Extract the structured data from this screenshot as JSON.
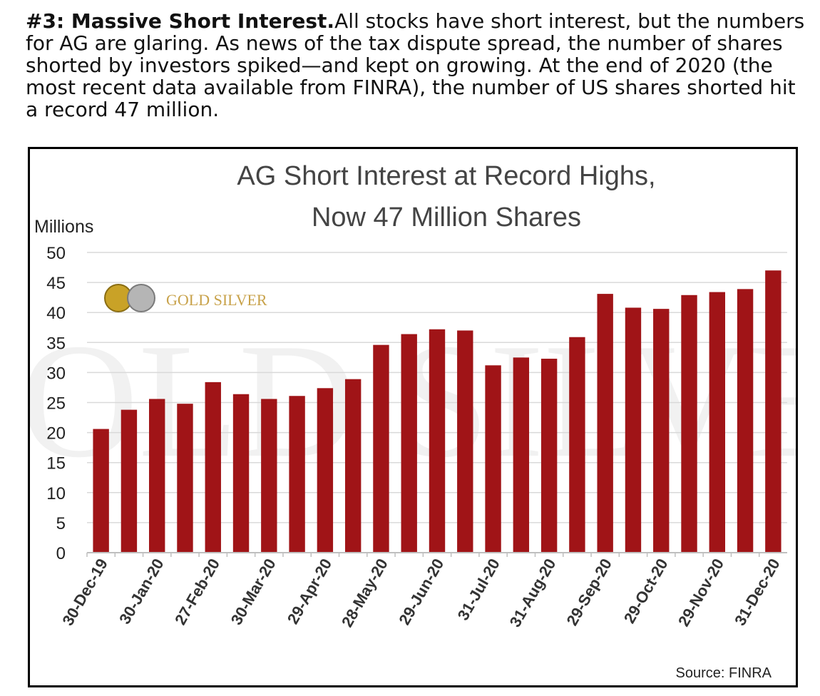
{
  "intro": {
    "lead": "#3: Massive Short Interest.",
    "body": "All stocks have short interest, but the numbers for AG are glaring. As news of the tax dispute spread, the number of shares shorted by investors spiked—and kept on growing. At the end of 2020 (the most recent data available from FINRA), the number of US shares shorted hit a record 47 million."
  },
  "logo": {
    "text": "GOLD SILVER",
    "gold_color": "#c9a227",
    "silver_color": "#a8a8a8"
  },
  "chart_data": {
    "type": "bar",
    "title": [
      "AG Short Interest at Record Highs,",
      "Now 47 Million Shares"
    ],
    "ylabel": "Millions",
    "xlabel": "",
    "ylim": [
      0,
      50
    ],
    "yticks": [
      0,
      5,
      10,
      15,
      20,
      25,
      30,
      35,
      40,
      45,
      50
    ],
    "grid": true,
    "bar_color": "#a01417",
    "source": "Source: FINRA",
    "x_tick_labels": [
      "30-Dec-19",
      "30-Jan-20",
      "27-Feb-20",
      "30-Mar-20",
      "29-Apr-20",
      "28-May-20",
      "29-Jun-20",
      "31-Jul-20",
      "31-Aug-20",
      "29-Sep-20",
      "29-Oct-20",
      "29-Nov-20",
      "31-Dec-20"
    ],
    "values": [
      20.6,
      23.8,
      25.6,
      24.8,
      28.4,
      26.4,
      25.6,
      26.1,
      27.4,
      28.9,
      34.6,
      36.4,
      37.2,
      37.0,
      31.2,
      32.5,
      32.3,
      35.9,
      43.1,
      40.8,
      40.6,
      42.9,
      43.4,
      43.9,
      47.0
    ]
  }
}
